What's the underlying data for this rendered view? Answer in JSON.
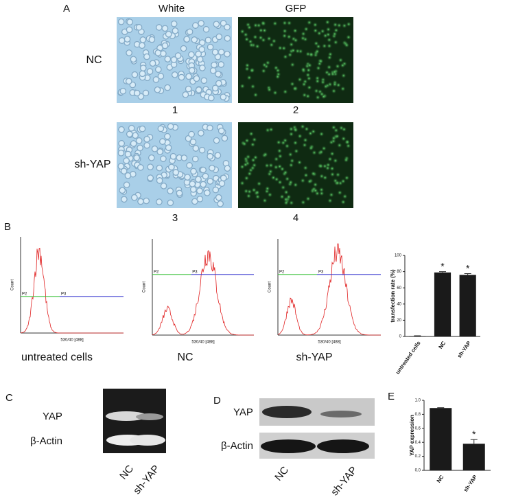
{
  "panels": [
    "A",
    "B",
    "C",
    "D",
    "E"
  ],
  "panel_a": {
    "columns": [
      "White",
      "GFP"
    ],
    "rows": [
      "NC",
      "sh-YAP"
    ],
    "numbers": [
      "1",
      "2",
      "3",
      "4"
    ]
  },
  "panel_b": {
    "histograms": [
      "untreated cells",
      "NC",
      "sh-YAP"
    ],
    "y_label": "Count",
    "x_label": "530/40 [488]",
    "gates": [
      "P2",
      "P3"
    ]
  },
  "panel_c": {
    "bands": [
      "YAP",
      "β-Actin"
    ],
    "lanes": [
      "NC",
      "sh-YAP"
    ]
  },
  "panel_d": {
    "bands": [
      "YAP",
      "β-Actin"
    ],
    "lanes": [
      "NC",
      "sh-YAP"
    ]
  },
  "chart_data": [
    {
      "type": "bar",
      "y_label": "transfection rate (%)",
      "categories": [
        "untreated cells",
        "NC",
        "sh-YAP"
      ],
      "values": [
        0.5,
        79,
        76
      ],
      "errors": [
        0.3,
        1,
        1.5
      ],
      "significance": [
        null,
        "*",
        "*"
      ],
      "color": "#1a1a1a",
      "ylim": [
        0,
        100
      ],
      "yticks": [
        0,
        20,
        40,
        60,
        80,
        100
      ]
    },
    {
      "type": "bar",
      "y_label": "YAP expression",
      "categories": [
        "NC",
        "sh-YAP"
      ],
      "values": [
        0.89,
        0.38
      ],
      "errors": [
        0.005,
        0.06
      ],
      "significance": [
        null,
        "*"
      ],
      "color": "#1a1a1a",
      "ylim": [
        0,
        1.0
      ],
      "yticks": [
        {
          "value": 0,
          "label": "0.0"
        },
        0.2,
        0.4,
        0.6,
        0.8,
        {
          "value": 1.0,
          "label": "1.0"
        }
      ]
    }
  ]
}
